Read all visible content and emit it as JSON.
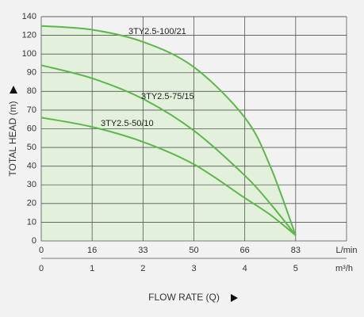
{
  "chart_data": {
    "type": "line",
    "y_label": "TOTAL HEAD (m)",
    "x_label": "FLOW RATE (Q)",
    "x_unit": "m³/h",
    "top_unit": "L/min",
    "top_ticks": [
      0,
      16,
      33,
      50,
      66,
      83
    ],
    "x": [
      0,
      1,
      2,
      3,
      4,
      4.5,
      5
    ],
    "series": [
      {
        "name": "3TY2.5-100/21",
        "color": "#5cb84a",
        "values": [
          130,
          126,
          113,
          93,
          66,
          40,
          3
        ],
        "fill": "#e3f1dc"
      },
      {
        "name": "3TY2.5-75/15",
        "color": "#5cb84a",
        "values": [
          94,
          87,
          76,
          59,
          35,
          20,
          3
        ]
      },
      {
        "name": "3TY2.5-50/10",
        "color": "#5cb84a",
        "values": [
          66,
          61,
          53,
          41,
          23,
          14,
          3
        ]
      }
    ],
    "xlim": [
      0,
      6
    ],
    "xticks": [
      0,
      1,
      2,
      3,
      4,
      5
    ],
    "ylim": [
      0,
      140
    ],
    "yticks": [
      0,
      10,
      20,
      30,
      40,
      50,
      60,
      70,
      80,
      90,
      100,
      120,
      140
    ],
    "grid": true
  }
}
